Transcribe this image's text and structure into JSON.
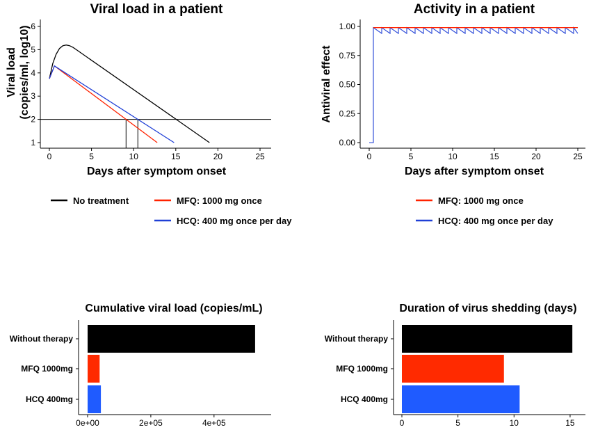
{
  "colors": {
    "none": "#000000",
    "mfq": "#ff2200",
    "hcq": "#1f3fd6",
    "mfq_bar": "#ff2a00",
    "hcq_bar": "#1f5bff"
  },
  "legend_left": [
    {
      "label": "No treatment",
      "color": "#000000"
    },
    {
      "label": "MFQ: 1000 mg once",
      "color": "#ff2200"
    },
    {
      "label": "HCQ: 400 mg once per day",
      "color": "#1f3fd6"
    }
  ],
  "legend_right": [
    {
      "label": "MFQ: 1000 mg once",
      "color": "#ff2200"
    },
    {
      "label": "HCQ: 400 mg once per day",
      "color": "#1f3fd6"
    }
  ],
  "chart_data": [
    {
      "id": "viral",
      "type": "line",
      "title": "Viral load in a patient",
      "xlabel": "Days after symptom onset",
      "ylabel": [
        "Viral load",
        "(copies/ml, log10)"
      ],
      "xlim": [
        0,
        25
      ],
      "ylim": [
        1,
        6
      ],
      "xticks": [
        0,
        5,
        10,
        15,
        20,
        25
      ],
      "yticks": [
        1,
        2,
        3,
        4,
        5,
        6
      ],
      "threshold": 2,
      "vlines": [
        9.1,
        10.5
      ],
      "series": [
        {
          "key": "none",
          "x": [
            0,
            0.4,
            0.8,
            1.2,
            1.6,
            2.0,
            2.4,
            2.8,
            3.2,
            19.0
          ],
          "y": [
            3.75,
            4.4,
            4.8,
            5.05,
            5.17,
            5.2,
            5.17,
            5.1,
            5.0,
            1.0
          ]
        },
        {
          "key": "mfq",
          "x": [
            0,
            0.6,
            12.8
          ],
          "y": [
            3.75,
            4.3,
            1.0
          ]
        },
        {
          "key": "hcq",
          "x": [
            0,
            0.6,
            14.8
          ],
          "y": [
            3.75,
            4.3,
            1.0
          ]
        }
      ]
    },
    {
      "id": "activity",
      "type": "line",
      "title": "Activity in a patient",
      "xlabel": "Days after symptom onset",
      "ylabel": [
        "Antiviral effect"
      ],
      "xlim": [
        0,
        25
      ],
      "ylim": [
        0,
        1
      ],
      "xticks": [
        0,
        5,
        10,
        15,
        20,
        25
      ],
      "yticks": [
        0,
        0.25,
        0.5,
        0.75,
        1
      ],
      "ytick_labels": [
        "0.00",
        "0.25",
        "0.50",
        "0.75",
        "1.00"
      ],
      "start_day": 0.5,
      "mfq_level": 0.99,
      "hcq_peak": 0.99,
      "hcq_trough": 0.94,
      "end_day": 25
    },
    {
      "id": "cumulative",
      "type": "bar",
      "orientation": "horizontal",
      "title": "Cumulative viral load (copies/mL)",
      "categories": [
        "Without therapy",
        "MFQ 1000mg",
        "HCQ 400mg"
      ],
      "values": [
        530000,
        38000,
        42000
      ],
      "xlim": [
        0,
        550000
      ],
      "xticks": [
        0,
        200000,
        400000
      ],
      "xtick_labels": [
        "0e+00",
        "2e+05",
        "4e+05"
      ]
    },
    {
      "id": "duration",
      "type": "bar",
      "orientation": "horizontal",
      "title": "Duration of virus shedding (days)",
      "categories": [
        "Without therapy",
        "MFQ 1000mg",
        "HCQ 400mg"
      ],
      "values": [
        15.2,
        9.1,
        10.5
      ],
      "xlim": [
        0,
        15.5
      ],
      "xticks": [
        0,
        5,
        10,
        15
      ],
      "xtick_labels": [
        "0",
        "5",
        "10",
        "15"
      ]
    }
  ]
}
